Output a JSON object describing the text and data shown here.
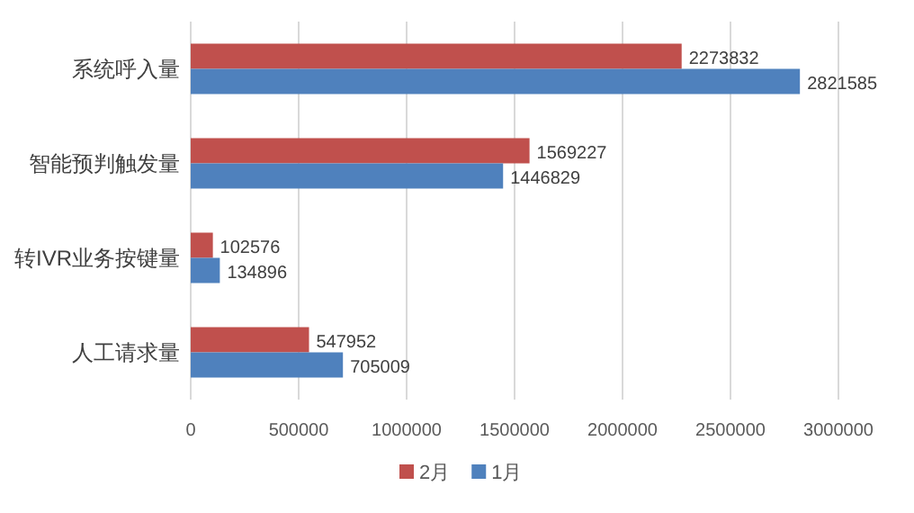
{
  "chart_data": {
    "type": "bar",
    "orientation": "horizontal",
    "categories": [
      "系统呼入量",
      "智能预判触发量",
      "转IVR业务按键量",
      "人工请求量"
    ],
    "series": [
      {
        "name": "2月",
        "color": "#c0504d",
        "values": [
          2273832,
          1569227,
          102576,
          547952
        ]
      },
      {
        "name": "1月",
        "color": "#4f81bd",
        "values": [
          2821585,
          1446829,
          134896,
          705009
        ]
      }
    ],
    "xlim": [
      0,
      3000000
    ],
    "xticks": [
      0,
      500000,
      1000000,
      1500000,
      2000000,
      2500000,
      3000000
    ],
    "grid": "x",
    "legend": "bottom",
    "data_labels": true
  }
}
